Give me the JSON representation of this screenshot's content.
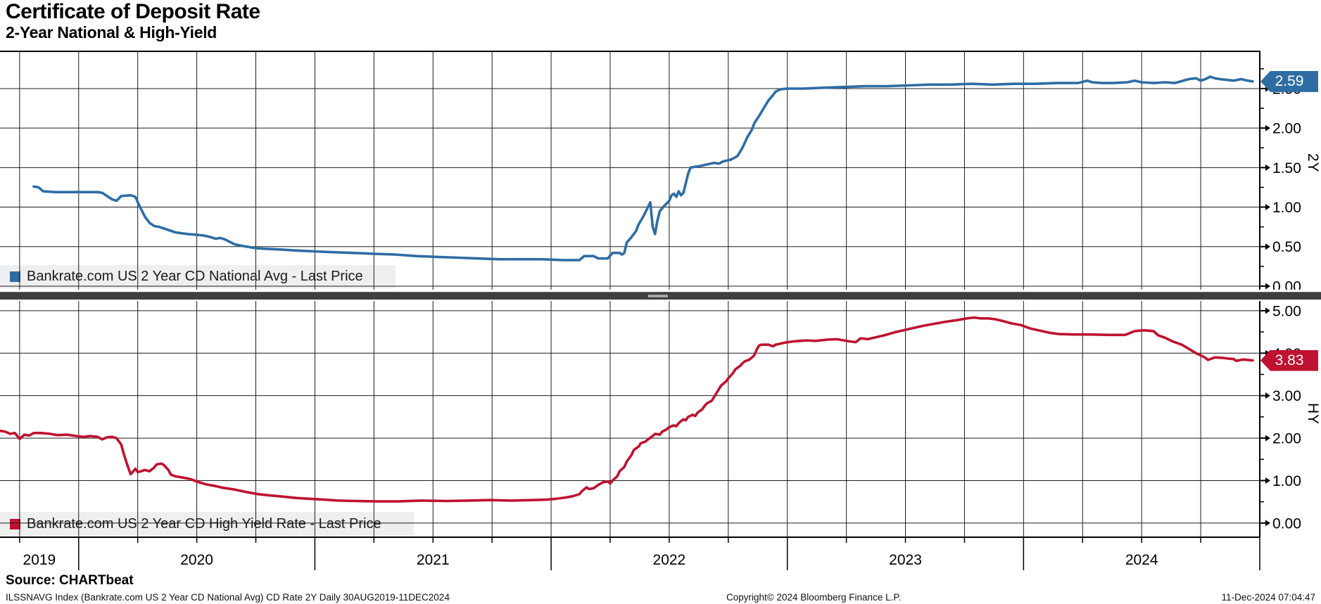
{
  "header": {
    "title": "Certificate of Deposit Rate",
    "subtitle": "2-Year National & High-Yield"
  },
  "footer": {
    "source": "Source: CHARTbeat",
    "description": "ILSSNAVG Index (Bankrate.com US 2 Year CD National Avg) CD Rate 2Y  Daily 30AUG2019-11DEC2024",
    "copyright": "Copyright© 2024 Bloomberg Finance L.P.",
    "timestamp": "11-Dec-2024 07:04:47"
  },
  "colors": {
    "national": "#2e6da4",
    "high_yield": "#bf1230",
    "grid": "#1c1c1c",
    "axis": "#000000",
    "legend_bg": "#efefef",
    "divider": "#3e3e3e",
    "tag_text": "#ffffff"
  },
  "x_axis": {
    "years": [
      "2019",
      "2020",
      "2021",
      "2022",
      "2023",
      "2024"
    ],
    "xlim": [
      2019.667,
      2025.0
    ],
    "minor_step": 0.25
  },
  "chart_data": [
    {
      "type": "line",
      "pane": "top",
      "axis_title": "2Y",
      "legend": "Bankrate.com US 2 Year CD National Avg - Last Price",
      "series_name": "Bankrate.com US 2 Year CD National Avg",
      "last_price": "2.59",
      "last_value": 2.59,
      "ylim": [
        -0.045,
        2.98
      ],
      "yticks": [
        0.0,
        0.5,
        1.0,
        1.5,
        2.0,
        2.5
      ],
      "ytick_labels": [
        "0.00",
        "0.50",
        "1.00",
        "1.50",
        "2.00",
        "2.50"
      ],
      "minor_ytick_step": 0.25,
      "grid": true,
      "legend_position": "bottom-left",
      "color_key": "national",
      "points": [
        [
          2019.81,
          1.26
        ],
        [
          2019.83,
          1.25
        ],
        [
          2019.85,
          1.2
        ],
        [
          2019.9,
          1.19
        ],
        [
          2020.0,
          1.19
        ],
        [
          2020.08,
          1.19
        ],
        [
          2020.1,
          1.18
        ],
        [
          2020.14,
          1.1
        ],
        [
          2020.16,
          1.08
        ],
        [
          2020.18,
          1.14
        ],
        [
          2020.22,
          1.15
        ],
        [
          2020.24,
          1.13
        ],
        [
          2020.26,
          1.0
        ],
        [
          2020.28,
          0.88
        ],
        [
          2020.3,
          0.8
        ],
        [
          2020.32,
          0.76
        ],
        [
          2020.34,
          0.75
        ],
        [
          2020.37,
          0.72
        ],
        [
          2020.41,
          0.68
        ],
        [
          2020.46,
          0.66
        ],
        [
          2020.5,
          0.65
        ],
        [
          2020.53,
          0.64
        ],
        [
          2020.56,
          0.62
        ],
        [
          2020.58,
          0.6
        ],
        [
          2020.6,
          0.61
        ],
        [
          2020.62,
          0.59
        ],
        [
          2020.64,
          0.56
        ],
        [
          2020.66,
          0.53
        ],
        [
          2020.69,
          0.51
        ],
        [
          2020.71,
          0.5
        ],
        [
          2020.75,
          0.48
        ],
        [
          2020.81,
          0.47
        ],
        [
          2020.87,
          0.46
        ],
        [
          2020.93,
          0.45
        ],
        [
          2021.0,
          0.44
        ],
        [
          2021.07,
          0.43
        ],
        [
          2021.16,
          0.42
        ],
        [
          2021.25,
          0.41
        ],
        [
          2021.34,
          0.4
        ],
        [
          2021.43,
          0.38
        ],
        [
          2021.52,
          0.37
        ],
        [
          2021.61,
          0.36
        ],
        [
          2021.69,
          0.35
        ],
        [
          2021.78,
          0.34
        ],
        [
          2021.87,
          0.34
        ],
        [
          2021.96,
          0.34
        ],
        [
          2022.05,
          0.33
        ],
        [
          2022.12,
          0.33
        ],
        [
          2022.14,
          0.38
        ],
        [
          2022.18,
          0.38
        ],
        [
          2022.2,
          0.35
        ],
        [
          2022.24,
          0.35
        ],
        [
          2022.26,
          0.42
        ],
        [
          2022.29,
          0.42
        ],
        [
          2022.3,
          0.4
        ],
        [
          2022.31,
          0.42
        ],
        [
          2022.32,
          0.55
        ],
        [
          2022.34,
          0.62
        ],
        [
          2022.36,
          0.7
        ],
        [
          2022.37,
          0.78
        ],
        [
          2022.39,
          0.88
        ],
        [
          2022.41,
          1.0
        ],
        [
          2022.42,
          1.06
        ],
        [
          2022.43,
          0.75
        ],
        [
          2022.44,
          0.66
        ],
        [
          2022.45,
          0.83
        ],
        [
          2022.46,
          0.95
        ],
        [
          2022.48,
          1.02
        ],
        [
          2022.5,
          1.08
        ],
        [
          2022.51,
          1.15
        ],
        [
          2022.52,
          1.17
        ],
        [
          2022.53,
          1.13
        ],
        [
          2022.54,
          1.2
        ],
        [
          2022.55,
          1.15
        ],
        [
          2022.56,
          1.18
        ],
        [
          2022.57,
          1.3
        ],
        [
          2022.58,
          1.42
        ],
        [
          2022.59,
          1.5
        ],
        [
          2022.61,
          1.51
        ],
        [
          2022.63,
          1.52
        ],
        [
          2022.66,
          1.54
        ],
        [
          2022.69,
          1.56
        ],
        [
          2022.71,
          1.55
        ],
        [
          2022.73,
          1.58
        ],
        [
          2022.76,
          1.6
        ],
        [
          2022.78,
          1.63
        ],
        [
          2022.79,
          1.65
        ],
        [
          2022.81,
          1.75
        ],
        [
          2022.83,
          1.88
        ],
        [
          2022.85,
          1.98
        ],
        [
          2022.86,
          2.06
        ],
        [
          2022.88,
          2.15
        ],
        [
          2022.9,
          2.25
        ],
        [
          2022.92,
          2.35
        ],
        [
          2022.94,
          2.42
        ],
        [
          2022.95,
          2.46
        ],
        [
          2022.97,
          2.49
        ],
        [
          2023.0,
          2.5
        ],
        [
          2023.07,
          2.5
        ],
        [
          2023.15,
          2.51
        ],
        [
          2023.24,
          2.52
        ],
        [
          2023.33,
          2.53
        ],
        [
          2023.42,
          2.53
        ],
        [
          2023.51,
          2.54
        ],
        [
          2023.6,
          2.55
        ],
        [
          2023.69,
          2.55
        ],
        [
          2023.78,
          2.56
        ],
        [
          2023.87,
          2.55
        ],
        [
          2023.96,
          2.56
        ],
        [
          2024.05,
          2.56
        ],
        [
          2024.14,
          2.57
        ],
        [
          2024.23,
          2.57
        ],
        [
          2024.27,
          2.6
        ],
        [
          2024.29,
          2.58
        ],
        [
          2024.33,
          2.57
        ],
        [
          2024.38,
          2.57
        ],
        [
          2024.44,
          2.58
        ],
        [
          2024.47,
          2.6
        ],
        [
          2024.5,
          2.58
        ],
        [
          2024.55,
          2.57
        ],
        [
          2024.6,
          2.58
        ],
        [
          2024.64,
          2.57
        ],
        [
          2024.7,
          2.62
        ],
        [
          2024.73,
          2.63
        ],
        [
          2024.75,
          2.6
        ],
        [
          2024.77,
          2.62
        ],
        [
          2024.79,
          2.65
        ],
        [
          2024.81,
          2.63
        ],
        [
          2024.83,
          2.62
        ],
        [
          2024.86,
          2.61
        ],
        [
          2024.89,
          2.6
        ],
        [
          2024.92,
          2.62
        ],
        [
          2024.95,
          2.6
        ],
        [
          2024.97,
          2.59
        ]
      ]
    },
    {
      "type": "line",
      "pane": "bottom",
      "axis_title": "HY",
      "legend": "Bankrate.com US 2 Year CD High Yield Rate - Last Price",
      "series_name": "Bankrate.com US 2 Year CD High Yield Rate",
      "last_price": "3.83",
      "last_value": 3.83,
      "ylim": [
        -0.35,
        5.23
      ],
      "yticks": [
        0.0,
        1.0,
        2.0,
        3.0,
        4.0,
        5.0
      ],
      "ytick_labels": [
        "0.00",
        "1.00",
        "2.00",
        "3.00",
        "4.00",
        "5.00"
      ],
      "minor_ytick_step": 0.5,
      "grid": true,
      "legend_position": "bottom-left",
      "color_key": "high_yield",
      "points": [
        [
          2019.67,
          2.17
        ],
        [
          2019.69,
          2.15
        ],
        [
          2019.71,
          2.1
        ],
        [
          2019.73,
          2.12
        ],
        [
          2019.75,
          1.98
        ],
        [
          2019.77,
          2.08
        ],
        [
          2019.79,
          2.06
        ],
        [
          2019.81,
          2.12
        ],
        [
          2019.84,
          2.12
        ],
        [
          2019.88,
          2.1
        ],
        [
          2019.91,
          2.07
        ],
        [
          2019.95,
          2.08
        ],
        [
          2019.99,
          2.05
        ],
        [
          2020.02,
          2.03
        ],
        [
          2020.05,
          2.05
        ],
        [
          2020.08,
          2.03
        ],
        [
          2020.1,
          1.97
        ],
        [
          2020.12,
          2.02
        ],
        [
          2020.14,
          2.03
        ],
        [
          2020.16,
          2.0
        ],
        [
          2020.18,
          1.85
        ],
        [
          2020.19,
          1.65
        ],
        [
          2020.2,
          1.47
        ],
        [
          2020.21,
          1.3
        ],
        [
          2020.22,
          1.15
        ],
        [
          2020.23,
          1.21
        ],
        [
          2020.24,
          1.28
        ],
        [
          2020.25,
          1.2
        ],
        [
          2020.27,
          1.23
        ],
        [
          2020.28,
          1.25
        ],
        [
          2020.3,
          1.22
        ],
        [
          2020.32,
          1.31
        ],
        [
          2020.33,
          1.38
        ],
        [
          2020.35,
          1.4
        ],
        [
          2020.36,
          1.37
        ],
        [
          2020.38,
          1.25
        ],
        [
          2020.39,
          1.14
        ],
        [
          2020.41,
          1.1
        ],
        [
          2020.44,
          1.07
        ],
        [
          2020.47,
          1.04
        ],
        [
          2020.49,
          1.0
        ],
        [
          2020.51,
          0.96
        ],
        [
          2020.54,
          0.91
        ],
        [
          2020.58,
          0.87
        ],
        [
          2020.61,
          0.83
        ],
        [
          2020.66,
          0.79
        ],
        [
          2020.71,
          0.73
        ],
        [
          2020.76,
          0.68
        ],
        [
          2020.81,
          0.65
        ],
        [
          2020.87,
          0.62
        ],
        [
          2020.92,
          0.59
        ],
        [
          2020.98,
          0.57
        ],
        [
          2021.04,
          0.55
        ],
        [
          2021.1,
          0.53
        ],
        [
          2021.17,
          0.52
        ],
        [
          2021.26,
          0.51
        ],
        [
          2021.35,
          0.51
        ],
        [
          2021.45,
          0.53
        ],
        [
          2021.56,
          0.52
        ],
        [
          2021.65,
          0.53
        ],
        [
          2021.74,
          0.54
        ],
        [
          2021.83,
          0.53
        ],
        [
          2021.92,
          0.54
        ],
        [
          2021.98,
          0.55
        ],
        [
          2022.02,
          0.57
        ],
        [
          2022.06,
          0.6
        ],
        [
          2022.09,
          0.63
        ],
        [
          2022.12,
          0.68
        ],
        [
          2022.13,
          0.75
        ],
        [
          2022.15,
          0.84
        ],
        [
          2022.16,
          0.8
        ],
        [
          2022.18,
          0.82
        ],
        [
          2022.2,
          0.9
        ],
        [
          2022.22,
          0.96
        ],
        [
          2022.24,
          0.98
        ],
        [
          2022.25,
          0.93
        ],
        [
          2022.26,
          1.0
        ],
        [
          2022.28,
          1.1
        ],
        [
          2022.29,
          1.22
        ],
        [
          2022.31,
          1.32
        ],
        [
          2022.32,
          1.45
        ],
        [
          2022.34,
          1.6
        ],
        [
          2022.35,
          1.72
        ],
        [
          2022.37,
          1.8
        ],
        [
          2022.38,
          1.88
        ],
        [
          2022.4,
          1.92
        ],
        [
          2022.41,
          1.97
        ],
        [
          2022.43,
          2.05
        ],
        [
          2022.44,
          2.1
        ],
        [
          2022.46,
          2.08
        ],
        [
          2022.47,
          2.15
        ],
        [
          2022.49,
          2.21
        ],
        [
          2022.5,
          2.26
        ],
        [
          2022.52,
          2.3
        ],
        [
          2022.53,
          2.28
        ],
        [
          2022.54,
          2.35
        ],
        [
          2022.55,
          2.4
        ],
        [
          2022.56,
          2.44
        ],
        [
          2022.57,
          2.42
        ],
        [
          2022.58,
          2.5
        ],
        [
          2022.6,
          2.55
        ],
        [
          2022.61,
          2.52
        ],
        [
          2022.62,
          2.6
        ],
        [
          2022.64,
          2.68
        ],
        [
          2022.65,
          2.76
        ],
        [
          2022.66,
          2.82
        ],
        [
          2022.68,
          2.88
        ],
        [
          2022.69,
          2.97
        ],
        [
          2022.7,
          3.06
        ],
        [
          2022.71,
          3.15
        ],
        [
          2022.72,
          3.24
        ],
        [
          2022.74,
          3.33
        ],
        [
          2022.75,
          3.41
        ],
        [
          2022.76,
          3.47
        ],
        [
          2022.77,
          3.53
        ],
        [
          2022.78,
          3.62
        ],
        [
          2022.8,
          3.7
        ],
        [
          2022.81,
          3.76
        ],
        [
          2022.82,
          3.81
        ],
        [
          2022.84,
          3.85
        ],
        [
          2022.85,
          3.9
        ],
        [
          2022.86,
          3.95
        ],
        [
          2022.87,
          4.08
        ],
        [
          2022.88,
          4.18
        ],
        [
          2022.89,
          4.2
        ],
        [
          2022.92,
          4.2
        ],
        [
          2022.94,
          4.16
        ],
        [
          2022.95,
          4.2
        ],
        [
          2022.99,
          4.25
        ],
        [
          2023.03,
          4.28
        ],
        [
          2023.08,
          4.3
        ],
        [
          2023.12,
          4.29
        ],
        [
          2023.17,
          4.32
        ],
        [
          2023.21,
          4.33
        ],
        [
          2023.26,
          4.28
        ],
        [
          2023.29,
          4.26
        ],
        [
          2023.31,
          4.35
        ],
        [
          2023.34,
          4.33
        ],
        [
          2023.38,
          4.38
        ],
        [
          2023.41,
          4.42
        ],
        [
          2023.46,
          4.5
        ],
        [
          2023.5,
          4.55
        ],
        [
          2023.54,
          4.6
        ],
        [
          2023.58,
          4.65
        ],
        [
          2023.63,
          4.7
        ],
        [
          2023.67,
          4.74
        ],
        [
          2023.72,
          4.78
        ],
        [
          2023.76,
          4.82
        ],
        [
          2023.79,
          4.84
        ],
        [
          2023.82,
          4.82
        ],
        [
          2023.85,
          4.82
        ],
        [
          2023.88,
          4.8
        ],
        [
          2023.91,
          4.76
        ],
        [
          2023.95,
          4.7
        ],
        [
          2023.99,
          4.66
        ],
        [
          2024.03,
          4.58
        ],
        [
          2024.07,
          4.53
        ],
        [
          2024.11,
          4.48
        ],
        [
          2024.15,
          4.45
        ],
        [
          2024.21,
          4.44
        ],
        [
          2024.28,
          4.44
        ],
        [
          2024.36,
          4.43
        ],
        [
          2024.43,
          4.43
        ],
        [
          2024.47,
          4.52
        ],
        [
          2024.51,
          4.54
        ],
        [
          2024.55,
          4.52
        ],
        [
          2024.57,
          4.42
        ],
        [
          2024.6,
          4.36
        ],
        [
          2024.63,
          4.28
        ],
        [
          2024.67,
          4.2
        ],
        [
          2024.7,
          4.1
        ],
        [
          2024.73,
          4.0
        ],
        [
          2024.75,
          3.95
        ],
        [
          2024.77,
          3.89
        ],
        [
          2024.78,
          3.84
        ],
        [
          2024.81,
          3.9
        ],
        [
          2024.84,
          3.89
        ],
        [
          2024.87,
          3.87
        ],
        [
          2024.89,
          3.86
        ],
        [
          2024.9,
          3.82
        ],
        [
          2024.93,
          3.85
        ],
        [
          2024.95,
          3.84
        ],
        [
          2024.97,
          3.83
        ]
      ]
    }
  ]
}
